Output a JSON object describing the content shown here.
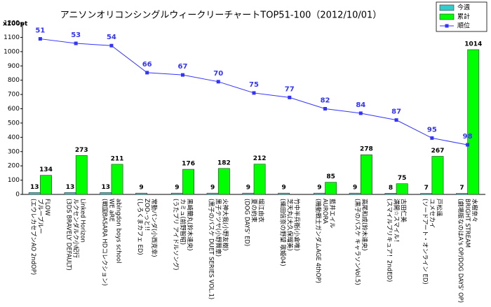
{
  "chart_data": {
    "type": "bar",
    "title": "アニソンオリコンシングルウィークリーチャートTOP51-100（2012/10/01）",
    "y_label": "x100pt",
    "categories": [
      [
        "FLOW",
        "ブループルー",
        "(エウレカセブンAO 2ndOP)"
      ],
      [
        "Linked Horizon",
        "ルクセンダルク小紀行",
        "(3DS BRAVELY DEFAULT)"
      ],
      [
        "abingdon boys school",
        "WE aRE",
        "(戦国BASARA HDコレクション)"
      ],
      [
        "常勤パンダ(小西克幸)",
        "ZOO-っと!!",
        "(しろくまカフェ ED)"
      ],
      [
        "黒崎蘭丸(鈴木達央)",
        "カミュ(前野智昭)",
        "(うたプリ アイドルソング)"
      ],
      [
        "火神大我(小野友樹)",
        "黒子テツヤ(小野賢章)",
        "(黒子のバスケ DUET SERIES VOL.1)"
      ],
      [
        "堀江由衣",
        "夏の約束",
        "(DOG DAYS' ED)"
      ],
      [
        "竹中半兵衛(小倉唯)",
        "芝天丸(大久保瑠美)",
        "(織田信奈の野望 歌姫04)"
      ],
      [
        "藍井エイル",
        "AURORA",
        "(機動戦士ガンダムAGE 4thOP)"
      ],
      [
        "高尾和成(鈴木達央)",
        "(黒子のバスケ キャラソンVol.5)"
      ],
      [
        "古田仁美",
        "満開☆スマイル！",
        "(スマイルプリキュア！2ndED)"
      ],
      [
        "戸松遥",
        "ユメセカイ",
        "(ソードアート・オンライン ED)"
      ],
      [
        "水樹奈々",
        "BRIGHT STREAM",
        "(劇場版なのはA's OP/DOG DAYS' OP)"
      ]
    ],
    "series": [
      {
        "name": "今週",
        "color": "#33cccc",
        "values": [
          13,
          13,
          13,
          9,
          9,
          9,
          9,
          9,
          9,
          9,
          8,
          7,
          7
        ]
      },
      {
        "name": "累計",
        "color": "#00ff00",
        "values": [
          134,
          273,
          211,
          null,
          176,
          182,
          212,
          null,
          85,
          278,
          75,
          267,
          1014
        ]
      },
      {
        "name": "順位",
        "color": "#3333ff",
        "type": "line",
        "axis": "y2",
        "values": [
          51,
          53,
          54,
          66,
          67,
          70,
          75,
          77,
          82,
          84,
          87,
          95,
          98
        ]
      }
    ],
    "ylim": [
      0,
      1200
    ],
    "yticks": [
      0,
      100,
      200,
      300,
      400,
      500,
      600,
      700,
      800,
      900,
      1000,
      1100,
      1200
    ],
    "y2lim": [
      120,
      44
    ],
    "grid": false,
    "legend": "top-right"
  }
}
